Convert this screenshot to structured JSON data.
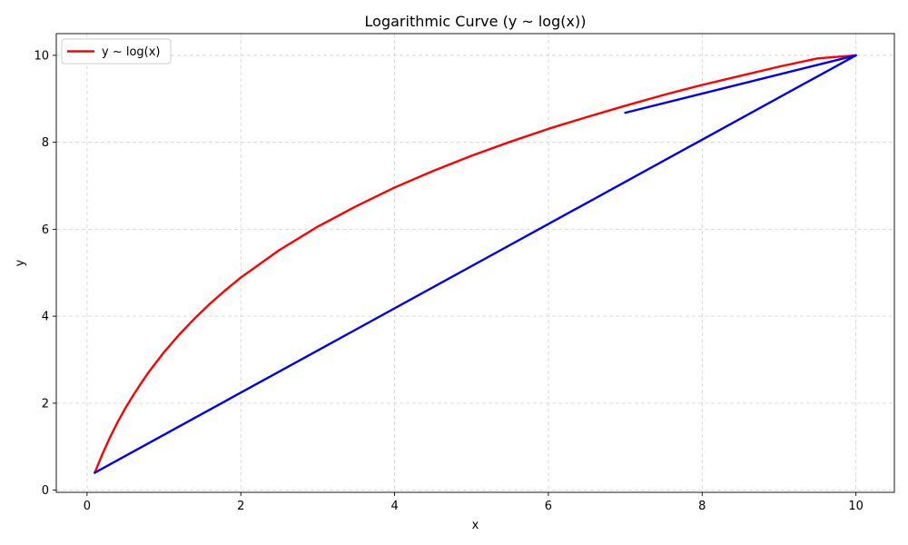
{
  "chart_data": {
    "type": "line",
    "title": "Logarithmic Curve (y ~ log(x))",
    "xlabel": "x",
    "ylabel": "y",
    "xlim": [
      -0.4,
      10.5
    ],
    "ylim": [
      -0.05,
      10.5
    ],
    "xticks": [
      "0",
      "2",
      "4",
      "6",
      "8",
      "10"
    ],
    "yticks": [
      "0",
      "2",
      "4",
      "6",
      "8",
      "10"
    ],
    "grid": true,
    "legend_position": "top-left",
    "series": [
      {
        "name": "y ~ log(x)",
        "color": "#ff0000",
        "x": [
          0.1,
          0.2,
          0.3,
          0.4,
          0.5,
          0.6,
          0.7,
          0.8,
          0.9,
          1.0,
          1.2,
          1.4,
          1.6,
          1.8,
          2.0,
          2.5,
          3.0,
          3.5,
          4.0,
          4.5,
          5.0,
          5.5,
          6.0,
          6.5,
          7.0,
          7.5,
          8.0,
          8.5,
          9.0,
          9.5,
          10.0
        ],
        "y": [
          0.4,
          0.83,
          1.22,
          1.57,
          1.89,
          2.18,
          2.45,
          2.71,
          2.94,
          3.17,
          3.58,
          3.95,
          4.29,
          4.6,
          4.89,
          5.52,
          6.06,
          6.53,
          6.96,
          7.34,
          7.69,
          8.01,
          8.31,
          8.58,
          8.84,
          9.09,
          9.32,
          9.53,
          9.74,
          9.93,
          10.0
        ]
      },
      {
        "name": "",
        "color": "#0000ee",
        "x": [
          0.1,
          10.0,
          7.0,
          10.0
        ],
        "y": [
          0.4,
          10.0,
          8.68,
          10.0
        ]
      }
    ]
  }
}
